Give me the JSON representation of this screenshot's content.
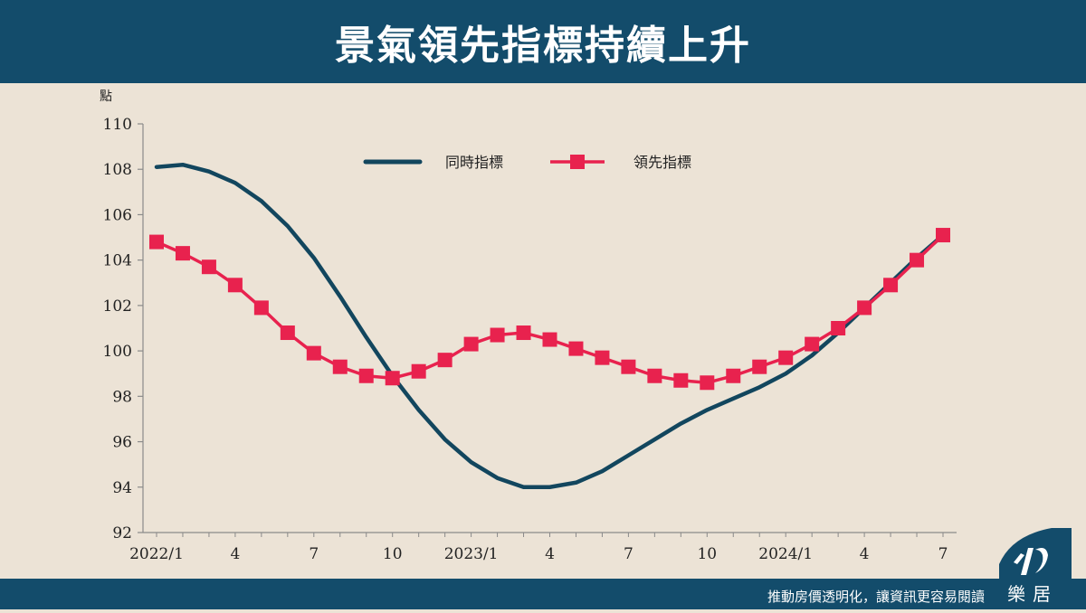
{
  "header": {
    "title": "景氣領先指標持續上升"
  },
  "footer": {
    "slogan": "推動房價透明化，讓資訊更容易閱讀",
    "logo_text": "樂居"
  },
  "colors": {
    "bar": "#134c6b",
    "background": "#ece3d6",
    "coincident": "#12465e",
    "leading": "#e8224e"
  },
  "chart_data": {
    "type": "line",
    "title": "景氣領先指標持續上升",
    "ylabel": "點",
    "xlabel": "",
    "ylim": [
      92,
      110
    ],
    "yticks": [
      92,
      94,
      96,
      98,
      100,
      102,
      104,
      106,
      108,
      110
    ],
    "x_tick_labels": [
      {
        "index": 0,
        "label": "2022/1"
      },
      {
        "index": 3,
        "label": "4"
      },
      {
        "index": 6,
        "label": "7"
      },
      {
        "index": 9,
        "label": "10"
      },
      {
        "index": 12,
        "label": "2023/1"
      },
      {
        "index": 15,
        "label": "4"
      },
      {
        "index": 18,
        "label": "7"
      },
      {
        "index": 21,
        "label": "10"
      },
      {
        "index": 24,
        "label": "2024/1"
      },
      {
        "index": 27,
        "label": "4"
      },
      {
        "index": 30,
        "label": "7"
      }
    ],
    "legend": {
      "position": "top-center"
    },
    "series": [
      {
        "name": "同時指標",
        "marker": "none",
        "values": [
          108.1,
          108.2,
          107.9,
          107.4,
          106.6,
          105.5,
          104.1,
          102.4,
          100.6,
          98.9,
          97.4,
          96.1,
          95.1,
          94.4,
          94.0,
          94.0,
          94.2,
          94.7,
          95.4,
          96.1,
          96.8,
          97.4,
          97.9,
          98.4,
          99.0,
          99.8,
          100.8,
          101.9,
          103.0,
          104.1,
          105.1
        ]
      },
      {
        "name": "領先指標",
        "marker": "square",
        "values": [
          104.8,
          104.3,
          103.7,
          102.9,
          101.9,
          100.8,
          99.9,
          99.3,
          98.9,
          98.8,
          99.1,
          99.6,
          100.3,
          100.7,
          100.8,
          100.5,
          100.1,
          99.7,
          99.3,
          98.9,
          98.7,
          98.6,
          98.9,
          99.3,
          99.7,
          100.3,
          101.0,
          101.9,
          102.9,
          104.0,
          105.1
        ]
      }
    ]
  }
}
